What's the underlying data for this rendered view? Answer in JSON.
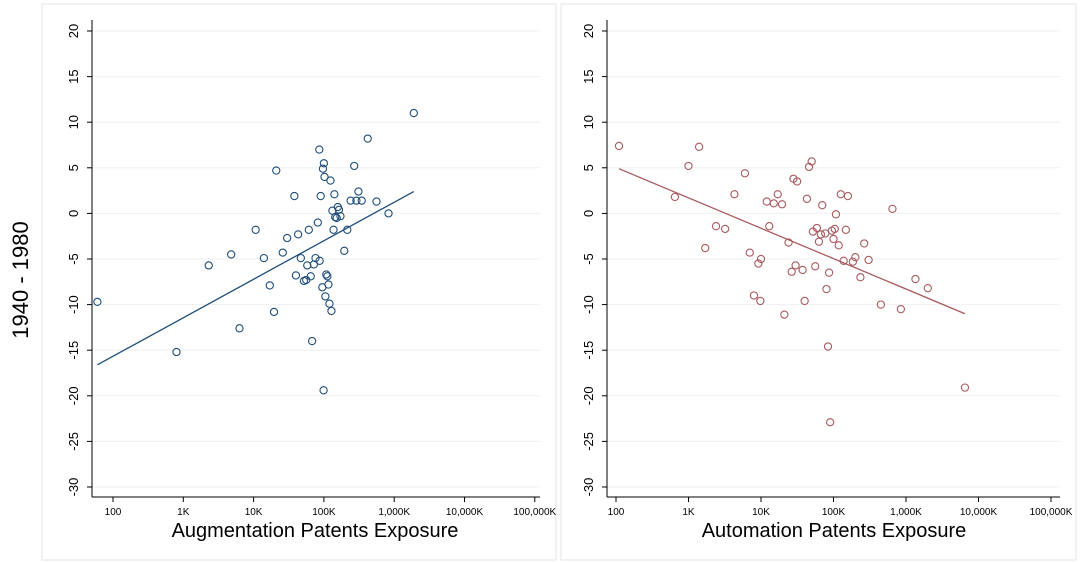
{
  "shared_ylabel": "1940 - 1980",
  "chart_data": [
    {
      "type": "scatter",
      "xscale": "log",
      "xlabel": "Augmentation Patents Exposure",
      "xticks": [
        100,
        1000,
        10000,
        100000,
        1000000,
        10000000,
        100000000
      ],
      "xtick_labels": [
        "100",
        "1K",
        "10K",
        "100K",
        "1,000K",
        "10,000K",
        "100,000K"
      ],
      "ylim": [
        -30,
        20
      ],
      "yticks": [
        20,
        15,
        10,
        5,
        0,
        -5,
        -10,
        -15,
        -20,
        -25,
        -30
      ],
      "grid": true,
      "color": "#1f4e79",
      "points": [
        [
          60,
          -9.7
        ],
        [
          800,
          -15.2
        ],
        [
          2300,
          -5.7
        ],
        [
          4800,
          -4.5
        ],
        [
          6300,
          -12.6
        ],
        [
          10700,
          -1.8
        ],
        [
          14000,
          -4.9
        ],
        [
          17000,
          -7.9
        ],
        [
          19500,
          -10.8
        ],
        [
          21000,
          4.7
        ],
        [
          26000,
          -4.3
        ],
        [
          30000,
          -2.7
        ],
        [
          38000,
          1.9
        ],
        [
          40000,
          -6.8
        ],
        [
          43000,
          -2.3
        ],
        [
          47000,
          -4.9
        ],
        [
          52000,
          -7.4
        ],
        [
          56000,
          -7.3
        ],
        [
          58000,
          -5.7
        ],
        [
          61000,
          -1.8
        ],
        [
          65000,
          -6.9
        ],
        [
          68000,
          -14.0
        ],
        [
          72000,
          -5.6
        ],
        [
          76000,
          -4.9
        ],
        [
          82000,
          -1.0
        ],
        [
          86000,
          7.0
        ],
        [
          87000,
          -5.2
        ],
        [
          90000,
          1.9
        ],
        [
          95000,
          -8.1
        ],
        [
          97000,
          4.9
        ],
        [
          99000,
          -19.4
        ],
        [
          100000,
          5.5
        ],
        [
          102000,
          4.0
        ],
        [
          105000,
          -9.1
        ],
        [
          108000,
          -6.7
        ],
        [
          112000,
          -6.9
        ],
        [
          116000,
          -7.8
        ],
        [
          120000,
          -9.9
        ],
        [
          124000,
          3.6
        ],
        [
          128000,
          -10.7
        ],
        [
          132000,
          0.3
        ],
        [
          137000,
          -1.8
        ],
        [
          141000,
          2.1
        ],
        [
          145000,
          -0.4
        ],
        [
          152000,
          -0.5
        ],
        [
          158000,
          0.7
        ],
        [
          164000,
          0.4
        ],
        [
          172000,
          -0.3
        ],
        [
          195000,
          -4.1
        ],
        [
          215000,
          -1.8
        ],
        [
          240000,
          1.4
        ],
        [
          270000,
          5.2
        ],
        [
          290000,
          1.4
        ],
        [
          310000,
          2.4
        ],
        [
          345000,
          1.4
        ],
        [
          420000,
          8.2
        ],
        [
          560000,
          1.3
        ],
        [
          830000,
          0.0
        ],
        [
          1900000,
          11.0
        ]
      ],
      "fit_line": {
        "x": [
          60,
          1900000
        ],
        "y": [
          -16.6,
          2.4
        ]
      }
    },
    {
      "type": "scatter",
      "xscale": "log",
      "xlabel": "Automation Patents Exposure",
      "xticks": [
        100,
        1000,
        10000,
        100000,
        1000000,
        10000000,
        100000000
      ],
      "xtick_labels": [
        "100",
        "1K",
        "10K",
        "100K",
        "1,000K",
        "10,000K",
        "100,000K"
      ],
      "ylim": [
        -30,
        20
      ],
      "yticks": [
        20,
        15,
        10,
        5,
        0,
        -5,
        -10,
        -15,
        -20,
        -25,
        -30
      ],
      "grid": true,
      "color": "#a85a5f",
      "points": [
        [
          110,
          7.4
        ],
        [
          650,
          1.8
        ],
        [
          1000,
          5.2
        ],
        [
          1400,
          7.3
        ],
        [
          1700,
          -3.8
        ],
        [
          2400,
          -1.4
        ],
        [
          3200,
          -1.7
        ],
        [
          4300,
          2.1
        ],
        [
          6000,
          4.4
        ],
        [
          7000,
          -4.3
        ],
        [
          8000,
          -9.0
        ],
        [
          9200,
          -5.5
        ],
        [
          9800,
          -9.6
        ],
        [
          10000,
          -5.0
        ],
        [
          12000,
          1.3
        ],
        [
          13000,
          -1.4
        ],
        [
          15000,
          1.1
        ],
        [
          17000,
          2.1
        ],
        [
          19500,
          1.0
        ],
        [
          21000,
          -11.1
        ],
        [
          24000,
          -3.2
        ],
        [
          26500,
          -6.4
        ],
        [
          28000,
          3.8
        ],
        [
          30000,
          -5.7
        ],
        [
          31500,
          3.5
        ],
        [
          37500,
          -6.2
        ],
        [
          40000,
          -9.6
        ],
        [
          43000,
          1.6
        ],
        [
          46000,
          5.1
        ],
        [
          50000,
          5.7
        ],
        [
          52000,
          -2.0
        ],
        [
          56000,
          -5.8
        ],
        [
          59000,
          -1.6
        ],
        [
          63000,
          -3.1
        ],
        [
          67000,
          -2.3
        ],
        [
          70000,
          0.9
        ],
        [
          77000,
          -2.2
        ],
        [
          80000,
          -8.3
        ],
        [
          84000,
          -14.6
        ],
        [
          87000,
          -6.5
        ],
        [
          90000,
          -22.9
        ],
        [
          95000,
          -1.9
        ],
        [
          100000,
          -2.8
        ],
        [
          104000,
          -1.7
        ],
        [
          108000,
          -0.1
        ],
        [
          118000,
          -3.5
        ],
        [
          126000,
          2.1
        ],
        [
          138000,
          -5.2
        ],
        [
          148000,
          -1.8
        ],
        [
          158000,
          1.9
        ],
        [
          185000,
          -5.3
        ],
        [
          200000,
          -4.8
        ],
        [
          235000,
          -7.0
        ],
        [
          265000,
          -3.3
        ],
        [
          305000,
          -5.1
        ],
        [
          450000,
          -10.0
        ],
        [
          650000,
          0.5
        ],
        [
          850000,
          -10.5
        ],
        [
          1350000,
          -7.2
        ],
        [
          2000000,
          -8.2
        ],
        [
          6500000,
          -19.1
        ]
      ],
      "fit_line": {
        "x": [
          110,
          6500000
        ],
        "y": [
          4.9,
          -11.0
        ]
      }
    }
  ]
}
